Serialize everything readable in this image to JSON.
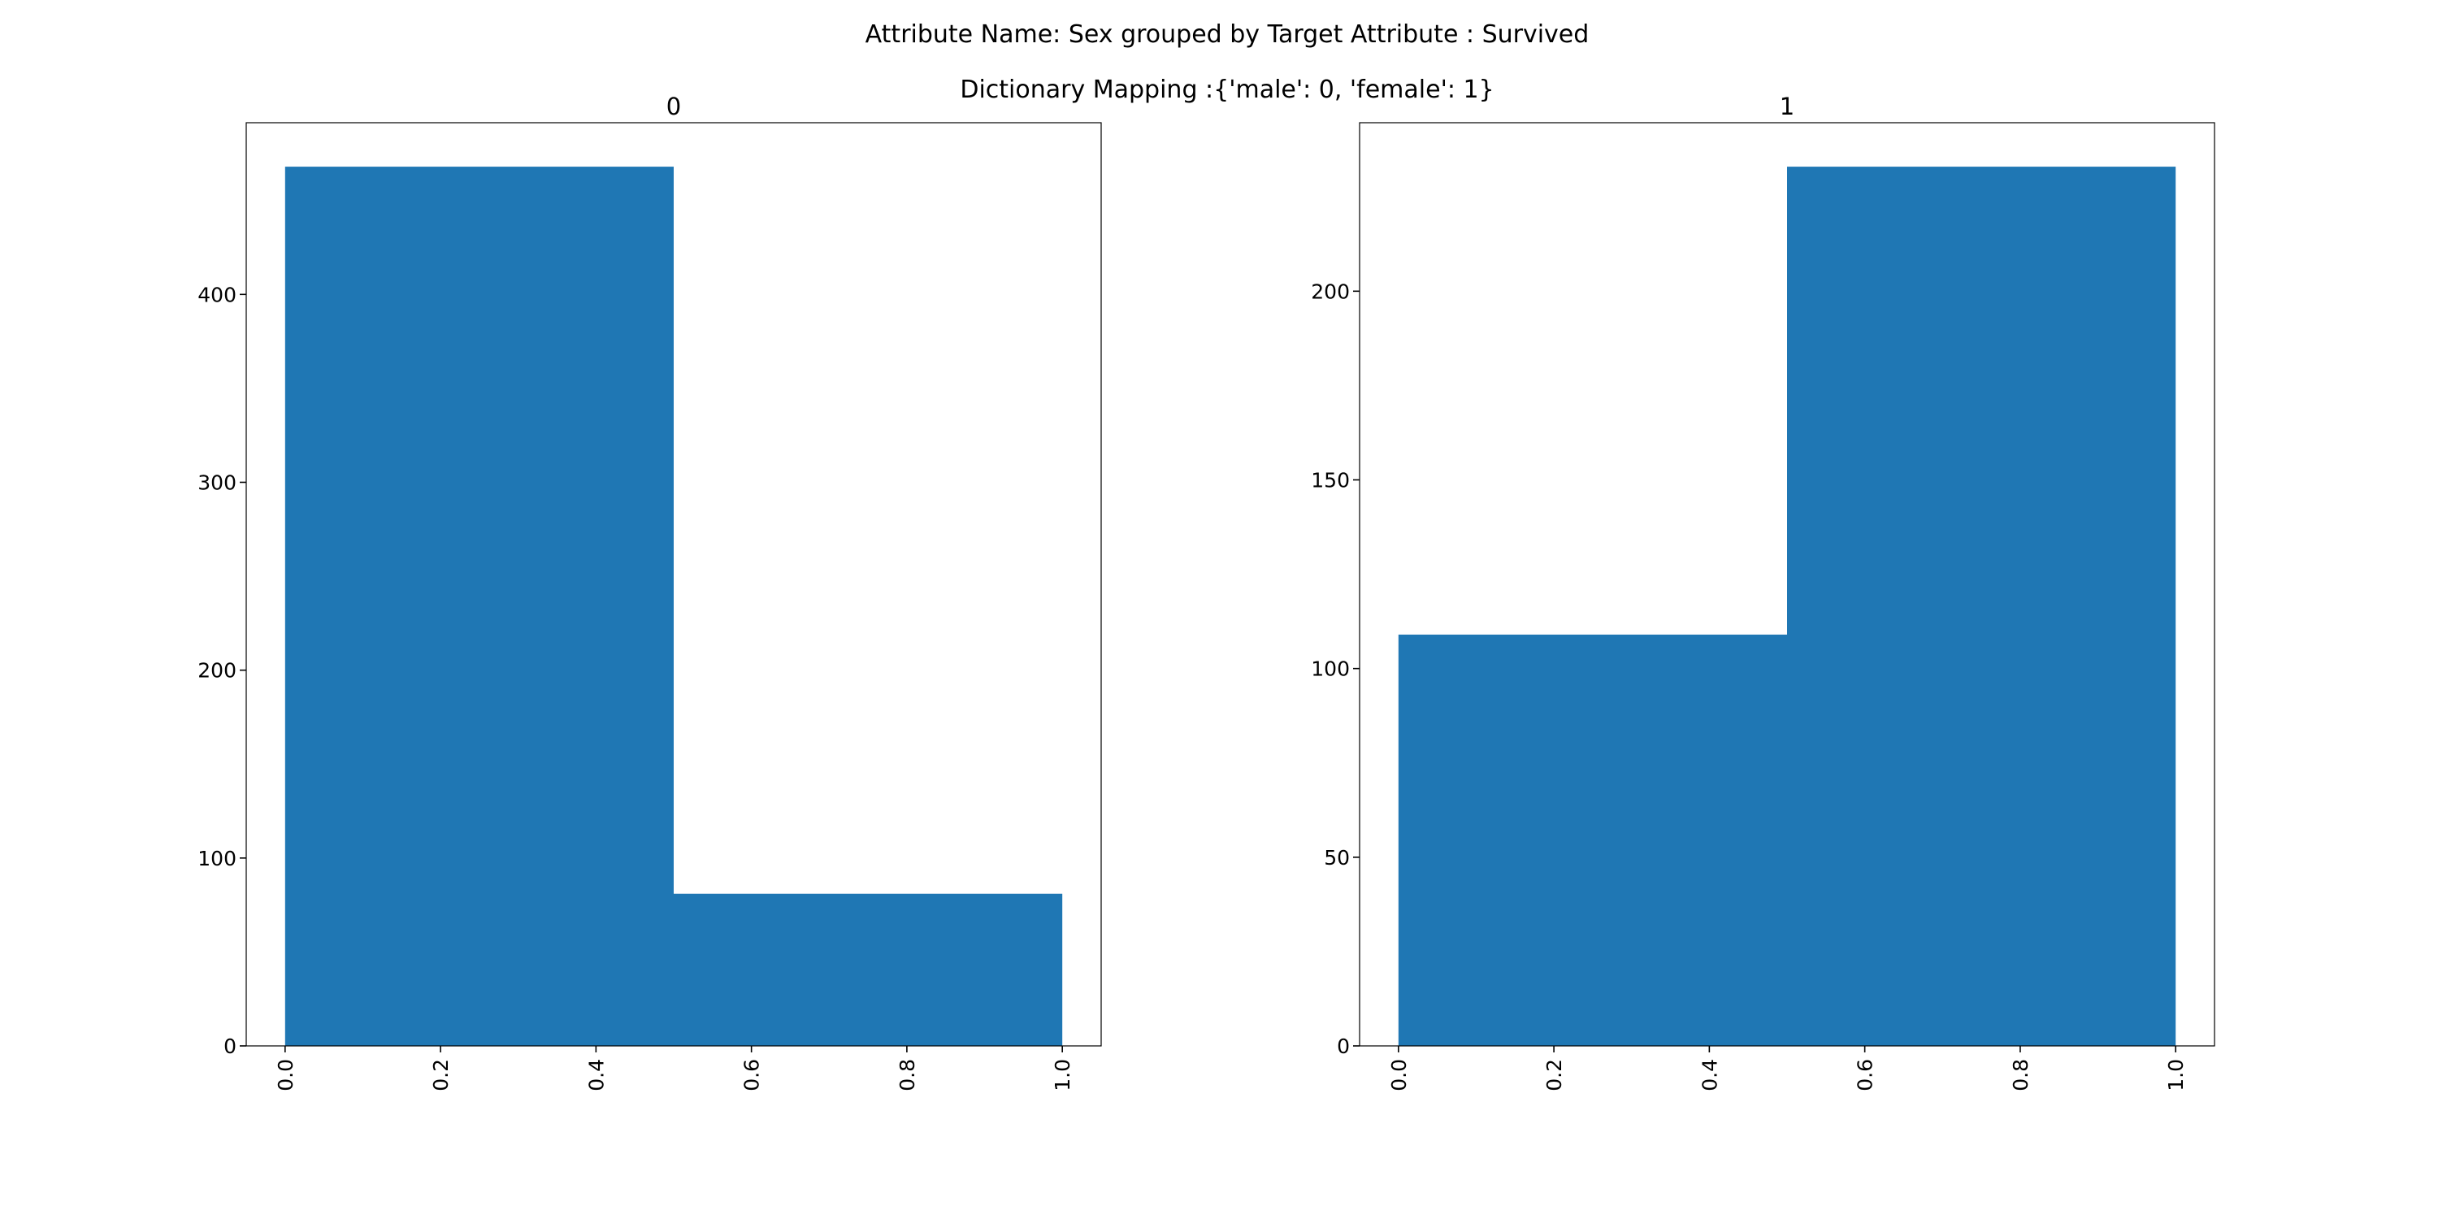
{
  "figure": {
    "title": "Attribute Name: Sex grouped by Target Attribute : Survived",
    "subtitle": "Dictionary Mapping :{'male': 0, 'female': 1}",
    "bar_color": "#1f77b4"
  },
  "chart_data": [
    {
      "type": "bar",
      "title": "0",
      "xlabel": "",
      "ylabel": "",
      "grid": false,
      "bins": [
        [
          0.0,
          0.5
        ],
        [
          0.5,
          1.0
        ]
      ],
      "values": [
        468,
        81
      ],
      "xlim": [
        -0.05,
        1.05
      ],
      "ylim": [
        0,
        491.4
      ],
      "xticks": [
        0.0,
        0.2,
        0.4,
        0.6,
        0.8,
        1.0
      ],
      "xtick_labels": [
        "0.0",
        "0.2",
        "0.4",
        "0.6",
        "0.8",
        "1.0"
      ],
      "yticks": [
        0,
        100,
        200,
        300,
        400
      ],
      "ytick_labels": [
        "0",
        "100",
        "200",
        "300",
        "400"
      ]
    },
    {
      "type": "bar",
      "title": "1",
      "xlabel": "",
      "ylabel": "",
      "grid": false,
      "bins": [
        [
          0.0,
          0.5
        ],
        [
          0.5,
          1.0
        ]
      ],
      "values": [
        109,
        233
      ],
      "xlim": [
        -0.05,
        1.05
      ],
      "ylim": [
        0,
        244.65
      ],
      "xticks": [
        0.0,
        0.2,
        0.4,
        0.6,
        0.8,
        1.0
      ],
      "xtick_labels": [
        "0.0",
        "0.2",
        "0.4",
        "0.6",
        "0.8",
        "1.0"
      ],
      "yticks": [
        0,
        50,
        100,
        150,
        200
      ],
      "ytick_labels": [
        "0",
        "50",
        "100",
        "150",
        "200"
      ]
    }
  ]
}
